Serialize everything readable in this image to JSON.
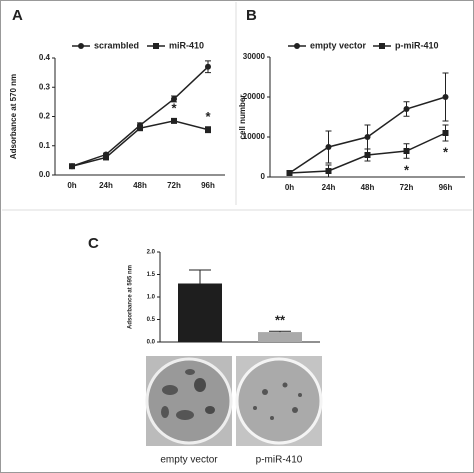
{
  "chart_data": [
    {
      "type": "line",
      "panel": "A",
      "y_label": "Adsorbance at 570 nm",
      "categories": [
        "0h",
        "24h",
        "48h",
        "72h",
        "96h"
      ],
      "series": [
        {
          "name": "scrambled",
          "color": "#222222",
          "marker": "circle",
          "values": [
            0.03,
            0.07,
            0.17,
            0.26,
            0.37
          ],
          "errors": [
            0.003,
            0.005,
            0.008,
            0.01,
            0.02
          ]
        },
        {
          "name": "miR-410",
          "color": "#222222",
          "marker": "square",
          "values": [
            0.03,
            0.06,
            0.16,
            0.185,
            0.155
          ],
          "errors": [
            0.003,
            0.004,
            0.006,
            0.005,
            0.01
          ]
        }
      ],
      "ylim": [
        0,
        0.4
      ],
      "yticks": [
        {
          "value": 0,
          "label": "0.0"
        },
        0.1,
        0.2,
        0.3,
        0.4
      ],
      "annotations": [
        "*",
        "*"
      ]
    },
    {
      "type": "line",
      "panel": "B",
      "y_label": "cell number",
      "categories": [
        "0h",
        "24h",
        "48h",
        "72h",
        "96h"
      ],
      "series": [
        {
          "name": "empty vector",
          "color": "#222222",
          "marker": "circle",
          "values": [
            1000,
            7500,
            10000,
            17000,
            20000
          ],
          "errors": [
            200,
            4000,
            3000,
            1800,
            6000
          ]
        },
        {
          "name": "p-miR-410",
          "color": "#222222",
          "marker": "square",
          "values": [
            1000,
            1500,
            5500,
            6500,
            11000
          ],
          "errors": [
            200,
            1500,
            1500,
            1800,
            2000
          ]
        }
      ],
      "ylim": [
        0,
        30000
      ],
      "yticks": [
        0,
        10000,
        20000,
        30000
      ],
      "annotations": [
        "*",
        "*"
      ]
    },
    {
      "type": "bar",
      "panel": "C",
      "y_label": "Adsorbance at 595 nm",
      "categories": [
        "empty vector",
        "p-miR-410"
      ],
      "series": [
        {
          "colors": [
            "#1e1e1e",
            "#aaaaaa"
          ],
          "values": [
            1.3,
            0.22
          ],
          "errors": [
            0.3,
            0.02
          ]
        }
      ],
      "ylim": [
        0,
        2.0
      ],
      "yticks": [
        {
          "value": 0,
          "label": "0.0"
        },
        0.5,
        {
          "value": 1,
          "label": "1.0"
        },
        1.5,
        {
          "value": 2,
          "label": "2.0"
        }
      ],
      "annotations": [
        "**"
      ]
    }
  ]
}
